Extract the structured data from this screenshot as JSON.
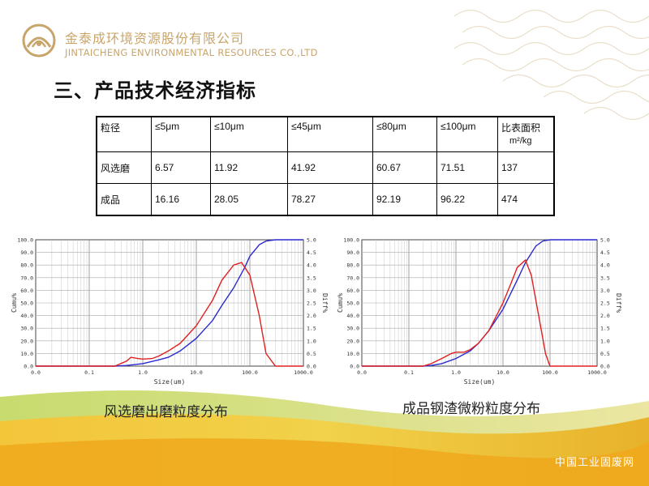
{
  "header": {
    "company_cn": "金泰成环境资源股份有限公司",
    "company_en": "JINTAICHENG ENVIRONMENTAL RESOURCES CO.,LTD"
  },
  "section_title": "三、产品技术经济指标",
  "table": {
    "columns": [
      "粒径",
      "≤5μm",
      "≤10μm",
      "≤45μm",
      "≤80μm",
      "≤100μm",
      "比表面积",
      "m²/kg"
    ],
    "rows": [
      [
        "风选磨",
        "6.57",
        "11.92",
        "41.92",
        "60.67",
        "71.51",
        "137"
      ],
      [
        "成品",
        "16.16",
        "28.05",
        "78.27",
        "92.19",
        "96.22",
        "474"
      ]
    ]
  },
  "captions": {
    "left": "风选磨出磨粒度分布",
    "right": "成品钢渣微粉粒度分布"
  },
  "watermark": "中国工业固废网",
  "colors": {
    "gold": "#c8a56b",
    "cumulative": "#2a2ad0",
    "differential": "#e02020"
  },
  "chart_data": [
    {
      "type": "line",
      "xscale": "log",
      "xlim": [
        0.01,
        1000
      ],
      "ylim_left": [
        0,
        100
      ],
      "ylim_right": [
        0,
        5
      ],
      "xticks": [
        "0.0",
        "0.1",
        "1.0",
        "10.0",
        "100.0",
        "1000.0"
      ],
      "yticks_left": [
        "0.0",
        "10.0",
        "20.0",
        "30.0",
        "40.0",
        "50.0",
        "60.0",
        "70.0",
        "80.0",
        "90.0",
        "100.0"
      ],
      "yticks_right": [
        "0.0",
        "0.5",
        "1.0",
        "1.5",
        "2.0",
        "2.5",
        "3.0",
        "3.5",
        "4.0",
        "4.5",
        "5.0"
      ],
      "xlabel": "Size(um)",
      "ylabel_left": "Cumu%",
      "ylabel_right": "Diff%",
      "series": [
        {
          "axis": "left",
          "x": [
            0.3,
            0.5,
            0.8,
            1,
            2,
            3,
            5,
            10,
            20,
            30,
            50,
            80,
            100,
            150,
            200,
            300,
            1000
          ],
          "y": [
            0,
            0.5,
            1.5,
            2,
            5,
            7,
            12,
            22,
            36,
            48,
            62,
            78,
            87,
            96,
            99,
            100,
            100
          ]
        },
        {
          "axis": "right",
          "x": [
            0.3,
            0.5,
            0.6,
            0.8,
            1,
            1.5,
            2,
            3,
            5,
            10,
            20,
            30,
            50,
            70,
            100,
            150,
            200,
            300
          ],
          "y": [
            0,
            0.2,
            0.35,
            0.3,
            0.28,
            0.3,
            0.4,
            0.6,
            0.9,
            1.6,
            2.6,
            3.4,
            4.0,
            4.1,
            3.6,
            2.0,
            0.5,
            0
          ]
        }
      ]
    },
    {
      "type": "line",
      "xscale": "log",
      "xlim": [
        0.01,
        1000
      ],
      "ylim_left": [
        0,
        100
      ],
      "ylim_right": [
        0,
        5
      ],
      "xticks": [
        "0.0",
        "0.1",
        "1.0",
        "10.0",
        "100.0",
        "1000.0"
      ],
      "yticks_left": [
        "0.0",
        "10.0",
        "20.0",
        "30.0",
        "40.0",
        "50.0",
        "60.0",
        "70.0",
        "80.0",
        "90.0",
        "100.0"
      ],
      "yticks_right": [
        "0.0",
        "0.5",
        "1.0",
        "1.5",
        "2.0",
        "2.5",
        "3.0",
        "3.5",
        "4.0",
        "4.5",
        "5.0"
      ],
      "xlabel": "Size(um)",
      "ylabel_left": "Cumu%",
      "ylabel_right": "Diff%",
      "series": [
        {
          "axis": "left",
          "x": [
            0.2,
            0.3,
            0.5,
            1,
            2,
            3,
            5,
            10,
            20,
            30,
            50,
            70,
            100,
            200,
            1000
          ],
          "y": [
            0,
            0.5,
            2,
            6,
            12,
            18,
            28,
            45,
            68,
            82,
            95,
            99,
            100,
            100,
            100
          ]
        },
        {
          "axis": "right",
          "x": [
            0.2,
            0.3,
            0.5,
            0.8,
            1,
            1.5,
            2,
            3,
            5,
            10,
            15,
            20,
            30,
            40,
            60,
            80,
            100
          ],
          "y": [
            0,
            0.1,
            0.3,
            0.5,
            0.55,
            0.55,
            0.65,
            0.9,
            1.4,
            2.5,
            3.3,
            3.9,
            4.2,
            3.6,
            1.8,
            0.5,
            0
          ]
        }
      ]
    }
  ]
}
